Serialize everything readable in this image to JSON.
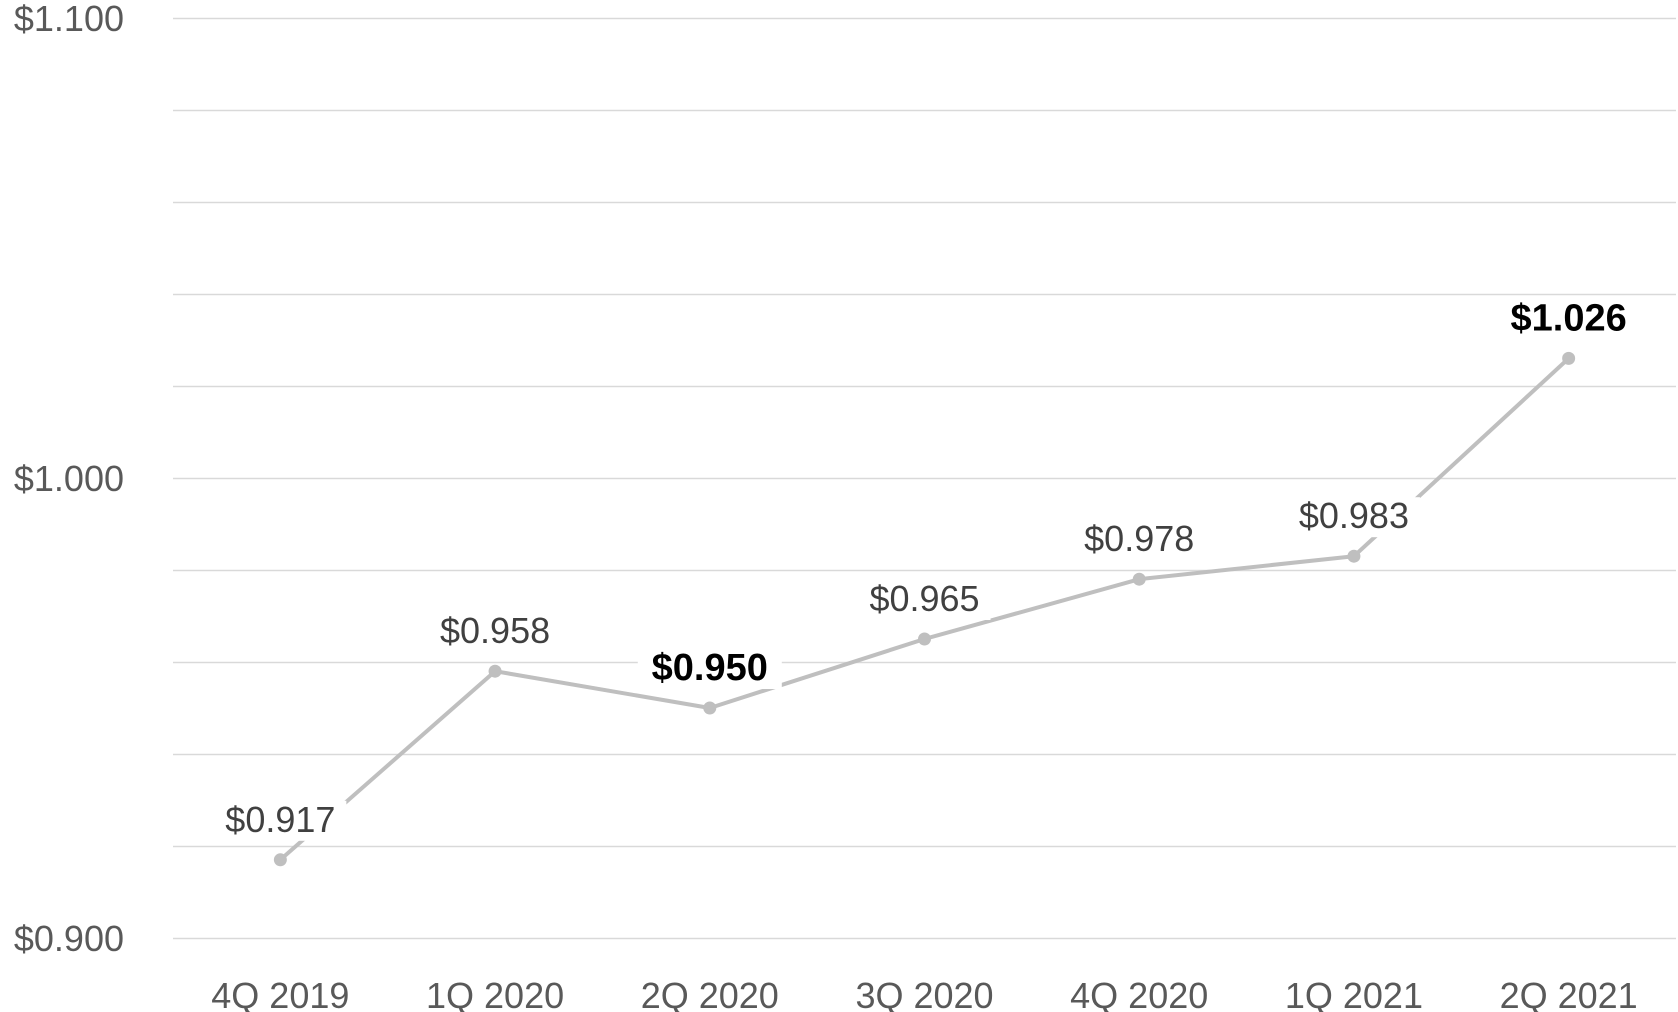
{
  "chart_data": {
    "type": "line",
    "categories": [
      "4Q 2019",
      "1Q 2020",
      "2Q 2020",
      "3Q 2020",
      "4Q 2020",
      "1Q 2021",
      "2Q 2021"
    ],
    "series": [
      {
        "values": [
          0.917,
          0.958,
          0.95,
          0.965,
          0.978,
          0.983,
          1.026
        ],
        "data_labels": [
          "$0.917",
          "$0.958",
          "$0.950",
          "$0.965",
          "$0.978",
          "$0.983",
          "$1.026"
        ],
        "bold_labels": [
          false,
          false,
          true,
          false,
          false,
          false,
          true
        ]
      }
    ],
    "y_tick_values": [
      0.9,
      1.0,
      1.1
    ],
    "y_tick_labels": [
      "$0.900",
      "$1.000",
      "$1.100"
    ],
    "ylim": [
      0.9,
      1.1
    ],
    "gridlines": true,
    "gridline_step": 0.02,
    "legend": "none",
    "colors": {
      "line": "#bfbfbf",
      "marker": "#bfbfbf",
      "grid": "#d9d9d9",
      "label": "#404040",
      "label_bold": "#000000",
      "tick": "#595959"
    }
  }
}
